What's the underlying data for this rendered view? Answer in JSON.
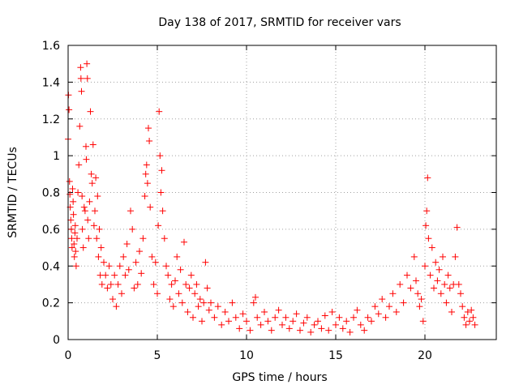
{
  "chart_data": {
    "type": "scatter",
    "title": "Day 138 of 2017, SRMTID for receiver vars",
    "xlabel": "GPS time / hours",
    "ylabel": "SRMTID / TECUs",
    "xlim": [
      0,
      24
    ],
    "ylim": [
      0,
      1.6
    ],
    "xticks": [
      0,
      5,
      10,
      15,
      20
    ],
    "xtick_labels": [
      "0",
      "5",
      "10",
      "15",
      "20"
    ],
    "yticks": [
      0,
      0.2,
      0.4,
      0.6,
      0.8,
      1,
      1.2,
      1.4,
      1.6
    ],
    "ytick_labels": [
      "0",
      "0.2",
      "0.4",
      "0.6",
      "0.8",
      "1",
      "1.2",
      "1.4",
      "1.6"
    ],
    "grid": true,
    "marker": "+",
    "marker_color": "#ff0000",
    "series": [
      {
        "name": "SRMTID",
        "points": [
          [
            0.0,
            1.09
          ],
          [
            0.02,
            1.33
          ],
          [
            0.05,
            1.25
          ],
          [
            0.08,
            0.86
          ],
          [
            0.1,
            0.79
          ],
          [
            0.12,
            0.72
          ],
          [
            0.15,
            0.65
          ],
          [
            0.18,
            0.6
          ],
          [
            0.2,
            0.55
          ],
          [
            0.22,
            0.5
          ],
          [
            0.25,
            0.82
          ],
          [
            0.28,
            0.75
          ],
          [
            0.3,
            0.68
          ],
          [
            0.33,
            0.52
          ],
          [
            0.35,
            0.45
          ],
          [
            0.38,
            0.58
          ],
          [
            0.4,
            0.62
          ],
          [
            0.42,
            0.48
          ],
          [
            0.45,
            0.4
          ],
          [
            0.5,
            0.55
          ],
          [
            0.55,
            0.8
          ],
          [
            0.6,
            0.95
          ],
          [
            0.65,
            1.16
          ],
          [
            0.7,
            1.48
          ],
          [
            0.72,
            1.42
          ],
          [
            0.75,
            1.35
          ],
          [
            0.78,
            0.78
          ],
          [
            0.8,
            0.6
          ],
          [
            0.85,
            0.5
          ],
          [
            0.9,
            0.72
          ],
          [
            0.95,
            0.7
          ],
          [
            1.0,
            1.05
          ],
          [
            1.02,
            0.98
          ],
          [
            1.05,
            1.5
          ],
          [
            1.08,
            1.42
          ],
          [
            1.1,
            0.65
          ],
          [
            1.15,
            0.55
          ],
          [
            1.2,
            0.75
          ],
          [
            1.25,
            1.24
          ],
          [
            1.3,
            0.9
          ],
          [
            1.35,
            0.85
          ],
          [
            1.4,
            1.06
          ],
          [
            1.45,
            0.62
          ],
          [
            1.5,
            0.7
          ],
          [
            1.55,
            0.88
          ],
          [
            1.6,
            0.55
          ],
          [
            1.65,
            0.78
          ],
          [
            1.7,
            0.45
          ],
          [
            1.75,
            0.6
          ],
          [
            1.8,
            0.35
          ],
          [
            1.85,
            0.5
          ],
          [
            1.9,
            0.3
          ],
          [
            2.0,
            0.42
          ],
          [
            2.1,
            0.35
          ],
          [
            2.2,
            0.28
          ],
          [
            2.3,
            0.4
          ],
          [
            2.4,
            0.3
          ],
          [
            2.5,
            0.22
          ],
          [
            2.6,
            0.35
          ],
          [
            2.7,
            0.18
          ],
          [
            2.8,
            0.3
          ],
          [
            2.9,
            0.4
          ],
          [
            3.0,
            0.25
          ],
          [
            3.1,
            0.45
          ],
          [
            3.2,
            0.35
          ],
          [
            3.3,
            0.52
          ],
          [
            3.4,
            0.38
          ],
          [
            3.5,
            0.7
          ],
          [
            3.6,
            0.6
          ],
          [
            3.7,
            0.28
          ],
          [
            3.8,
            0.42
          ],
          [
            3.9,
            0.3
          ],
          [
            4.0,
            0.48
          ],
          [
            4.1,
            0.36
          ],
          [
            4.2,
            0.55
          ],
          [
            4.3,
            0.78
          ],
          [
            4.35,
            0.9
          ],
          [
            4.4,
            0.95
          ],
          [
            4.45,
            0.85
          ],
          [
            4.5,
            1.15
          ],
          [
            4.55,
            1.08
          ],
          [
            4.6,
            0.72
          ],
          [
            4.7,
            0.45
          ],
          [
            4.8,
            0.3
          ],
          [
            4.9,
            0.42
          ],
          [
            5.0,
            0.25
          ],
          [
            5.05,
            0.62
          ],
          [
            5.1,
            1.24
          ],
          [
            5.15,
            1.0
          ],
          [
            5.2,
            0.8
          ],
          [
            5.25,
            0.92
          ],
          [
            5.3,
            0.7
          ],
          [
            5.4,
            0.55
          ],
          [
            5.5,
            0.4
          ],
          [
            5.6,
            0.35
          ],
          [
            5.7,
            0.22
          ],
          [
            5.8,
            0.3
          ],
          [
            5.9,
            0.18
          ],
          [
            6.0,
            0.32
          ],
          [
            6.1,
            0.45
          ],
          [
            6.2,
            0.25
          ],
          [
            6.3,
            0.38
          ],
          [
            6.4,
            0.2
          ],
          [
            6.5,
            0.53
          ],
          [
            6.6,
            0.3
          ],
          [
            6.7,
            0.15
          ],
          [
            6.8,
            0.28
          ],
          [
            6.9,
            0.35
          ],
          [
            7.0,
            0.12
          ],
          [
            7.1,
            0.25
          ],
          [
            7.2,
            0.3
          ],
          [
            7.3,
            0.18
          ],
          [
            7.4,
            0.22
          ],
          [
            7.5,
            0.1
          ],
          [
            7.6,
            0.2
          ],
          [
            7.7,
            0.42
          ],
          [
            7.8,
            0.28
          ],
          [
            7.9,
            0.16
          ],
          [
            8.0,
            0.2
          ],
          [
            8.2,
            0.12
          ],
          [
            8.4,
            0.18
          ],
          [
            8.6,
            0.08
          ],
          [
            8.8,
            0.15
          ],
          [
            9.0,
            0.1
          ],
          [
            9.2,
            0.2
          ],
          [
            9.4,
            0.12
          ],
          [
            9.6,
            0.06
          ],
          [
            9.8,
            0.14
          ],
          [
            10.0,
            0.1
          ],
          [
            10.2,
            0.05
          ],
          [
            10.4,
            0.2
          ],
          [
            10.5,
            0.23
          ],
          [
            10.6,
            0.12
          ],
          [
            10.8,
            0.08
          ],
          [
            11.0,
            0.15
          ],
          [
            11.2,
            0.1
          ],
          [
            11.4,
            0.05
          ],
          [
            11.6,
            0.12
          ],
          [
            11.8,
            0.16
          ],
          [
            12.0,
            0.08
          ],
          [
            12.2,
            0.12
          ],
          [
            12.4,
            0.06
          ],
          [
            12.6,
            0.1
          ],
          [
            12.8,
            0.14
          ],
          [
            13.0,
            0.05
          ],
          [
            13.2,
            0.09
          ],
          [
            13.4,
            0.12
          ],
          [
            13.6,
            0.04
          ],
          [
            13.8,
            0.08
          ],
          [
            14.0,
            0.1
          ],
          [
            14.2,
            0.06
          ],
          [
            14.4,
            0.13
          ],
          [
            14.6,
            0.05
          ],
          [
            14.8,
            0.15
          ],
          [
            15.0,
            0.08
          ],
          [
            15.2,
            0.12
          ],
          [
            15.4,
            0.06
          ],
          [
            15.6,
            0.1
          ],
          [
            15.8,
            0.04
          ],
          [
            16.0,
            0.12
          ],
          [
            16.2,
            0.16
          ],
          [
            16.4,
            0.08
          ],
          [
            16.6,
            0.05
          ],
          [
            16.8,
            0.12
          ],
          [
            17.0,
            0.1
          ],
          [
            17.2,
            0.18
          ],
          [
            17.4,
            0.14
          ],
          [
            17.6,
            0.22
          ],
          [
            17.8,
            0.12
          ],
          [
            18.0,
            0.18
          ],
          [
            18.2,
            0.25
          ],
          [
            18.4,
            0.15
          ],
          [
            18.6,
            0.3
          ],
          [
            18.8,
            0.2
          ],
          [
            19.0,
            0.35
          ],
          [
            19.2,
            0.28
          ],
          [
            19.4,
            0.45
          ],
          [
            19.5,
            0.32
          ],
          [
            19.6,
            0.25
          ],
          [
            19.7,
            0.18
          ],
          [
            19.8,
            0.22
          ],
          [
            19.9,
            0.1
          ],
          [
            20.0,
            0.4
          ],
          [
            20.05,
            0.62
          ],
          [
            20.1,
            0.7
          ],
          [
            20.15,
            0.88
          ],
          [
            20.2,
            0.55
          ],
          [
            20.3,
            0.35
          ],
          [
            20.4,
            0.5
          ],
          [
            20.5,
            0.28
          ],
          [
            20.6,
            0.42
          ],
          [
            20.7,
            0.32
          ],
          [
            20.8,
            0.38
          ],
          [
            20.9,
            0.25
          ],
          [
            21.0,
            0.45
          ],
          [
            21.1,
            0.3
          ],
          [
            21.2,
            0.2
          ],
          [
            21.3,
            0.35
          ],
          [
            21.4,
            0.28
          ],
          [
            21.5,
            0.15
          ],
          [
            21.6,
            0.3
          ],
          [
            21.7,
            0.45
          ],
          [
            21.8,
            0.61
          ],
          [
            21.9,
            0.3
          ],
          [
            22.0,
            0.25
          ],
          [
            22.1,
            0.18
          ],
          [
            22.2,
            0.12
          ],
          [
            22.3,
            0.08
          ],
          [
            22.4,
            0.15
          ],
          [
            22.5,
            0.1
          ],
          [
            22.6,
            0.16
          ],
          [
            22.7,
            0.12
          ],
          [
            22.8,
            0.08
          ]
        ]
      }
    ]
  }
}
